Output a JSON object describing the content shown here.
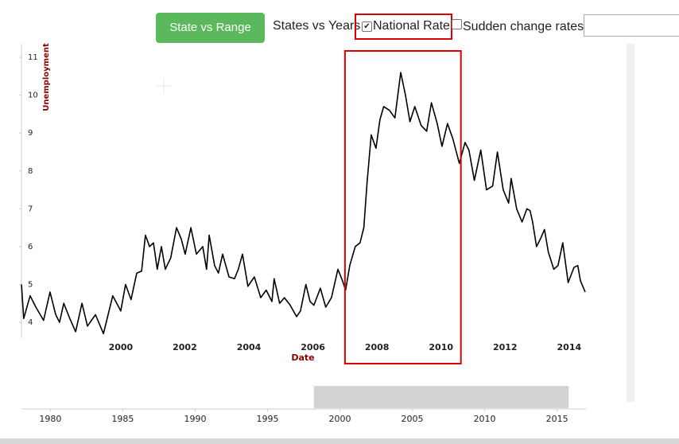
{
  "controls": {
    "button": "State vs Range",
    "label": "States vs Years",
    "checkbox_national": "National Rate",
    "checkbox_sudden": "Sudden change rates"
  },
  "chart_data": [
    {
      "type": "line",
      "x_label": "Date",
      "y_label": "Unemployment",
      "color": "#000000",
      "xlim": [
        1996.9,
        2014.5
      ],
      "xticks": [
        2000,
        2002,
        2004,
        2006,
        2008,
        2010,
        2012,
        2014
      ],
      "ylim": [
        3.58,
        11.36
      ],
      "yticks": [
        4,
        5,
        6,
        7,
        8,
        9,
        10,
        11
      ],
      "highlight": [
        2007.0,
        2010.62
      ],
      "highlight_color": "#e00000",
      "x": [
        1996.9,
        1996.97,
        1997.17,
        1997.35,
        1997.59,
        1997.79,
        1997.97,
        1998.09,
        1998.22,
        1998.41,
        1998.59,
        1998.79,
        1998.96,
        1999.21,
        1999.46,
        1999.75,
        2000.0,
        2000.15,
        2000.32,
        2000.5,
        2000.65,
        2000.77,
        2000.9,
        2001.02,
        2001.14,
        2001.27,
        2001.39,
        2001.56,
        2001.74,
        2001.89,
        2002.01,
        2002.19,
        2002.36,
        2002.56,
        2002.68,
        2002.76,
        2002.93,
        2003.05,
        2003.18,
        2003.38,
        2003.55,
        2003.67,
        2003.8,
        2003.97,
        2004.17,
        2004.37,
        2004.54,
        2004.72,
        2004.79,
        2004.96,
        2005.11,
        2005.29,
        2005.49,
        2005.61,
        2005.78,
        2005.91,
        2006.03,
        2006.23,
        2006.4,
        2006.58,
        2006.78,
        2006.9,
        2007.02,
        2007.15,
        2007.32,
        2007.47,
        2007.59,
        2007.69,
        2007.82,
        2007.97,
        2008.09,
        2008.21,
        2008.39,
        2008.56,
        2008.74,
        2008.89,
        2009.03,
        2009.18,
        2009.38,
        2009.55,
        2009.7,
        2009.88,
        2010.03,
        2010.2,
        2010.37,
        2010.57,
        2010.75,
        2010.87,
        2011.04,
        2011.24,
        2011.42,
        2011.61,
        2011.76,
        2011.94,
        2012.11,
        2012.19,
        2012.36,
        2012.53,
        2012.68,
        2012.78,
        2012.86,
        2012.98,
        2013.1,
        2013.23,
        2013.35,
        2013.52,
        2013.65,
        2013.8,
        2013.97,
        2014.15,
        2014.27,
        2014.35,
        2014.5
      ],
      "values": [
        5.0,
        4.1,
        4.7,
        4.4,
        4.05,
        4.8,
        4.2,
        4.0,
        4.5,
        4.1,
        3.75,
        4.5,
        3.9,
        4.2,
        3.7,
        4.7,
        4.3,
        5.0,
        4.6,
        5.3,
        5.35,
        6.3,
        6.0,
        6.1,
        5.4,
        6.0,
        5.4,
        5.7,
        6.5,
        6.2,
        5.8,
        6.5,
        5.8,
        6.0,
        5.4,
        6.3,
        5.5,
        5.3,
        5.8,
        5.2,
        5.15,
        5.4,
        5.8,
        4.95,
        5.2,
        4.65,
        4.85,
        4.55,
        5.15,
        4.5,
        4.65,
        4.45,
        4.15,
        4.3,
        5.0,
        4.55,
        4.45,
        4.9,
        4.4,
        4.65,
        5.4,
        5.15,
        4.85,
        5.5,
        6.0,
        6.1,
        6.5,
        7.7,
        8.95,
        8.6,
        9.35,
        9.7,
        9.6,
        9.4,
        10.6,
        10.0,
        9.3,
        9.7,
        9.2,
        9.05,
        9.8,
        9.25,
        8.65,
        9.25,
        8.85,
        8.2,
        8.75,
        8.55,
        7.75,
        8.55,
        7.5,
        7.6,
        8.5,
        7.5,
        7.15,
        7.8,
        7.0,
        6.65,
        7.0,
        6.95,
        6.65,
        6.0,
        6.2,
        6.45,
        5.85,
        5.4,
        5.5,
        6.1,
        5.05,
        5.45,
        5.5,
        5.1,
        4.8
      ]
    },
    {
      "type": "brush",
      "xlim": [
        1978.0,
        2017.0
      ],
      "xticks": [
        1980,
        1985,
        1990,
        1995,
        2000,
        2005,
        2010,
        2015
      ],
      "brush": [
        1998.2,
        2015.8
      ],
      "color": "#d3d3d3"
    }
  ]
}
